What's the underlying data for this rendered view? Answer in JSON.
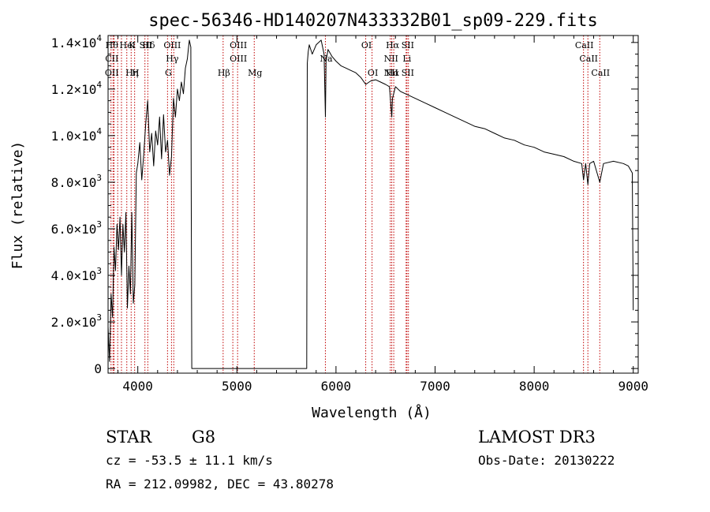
{
  "chart_data": {
    "type": "line",
    "title": "spec-56346-HD140207N433332B01_sp09-229.fits",
    "xlabel": "Wavelength (Å)",
    "ylabel": "Flux (relative)",
    "xlim": [
      3700,
      9050
    ],
    "ylim": [
      -200,
      14300
    ],
    "x_ticks": [
      4000,
      5000,
      6000,
      7000,
      8000,
      9000
    ],
    "x_tick_labels": [
      "4000",
      "5000",
      "6000",
      "7000",
      "8000",
      "9000"
    ],
    "y_ticks": [
      0,
      2000,
      4000,
      6000,
      8000,
      10000,
      12000,
      14000
    ],
    "y_tick_labels": [
      {
        "mant": "0",
        "exp": ""
      },
      {
        "mant": "2.0×10",
        "exp": "3"
      },
      {
        "mant": "4.0×10",
        "exp": "3"
      },
      {
        "mant": "6.0×10",
        "exp": "3"
      },
      {
        "mant": "8.0×10",
        "exp": "3"
      },
      {
        "mant": "1.0×10",
        "exp": "4"
      },
      {
        "mant": "1.2×10",
        "exp": "4"
      },
      {
        "mant": "1.4×10",
        "exp": "4"
      }
    ],
    "grid": false,
    "series": [
      {
        "color": "#000000",
        "x": [
          3700,
          3715,
          3730,
          3745,
          3760,
          3775,
          3790,
          3805,
          3820,
          3835,
          3850,
          3865,
          3880,
          3895,
          3910,
          3925,
          3940,
          3955,
          3970,
          3985,
          4000,
          4020,
          4040,
          4060,
          4080,
          4100,
          4120,
          4140,
          4160,
          4180,
          4200,
          4220,
          4240,
          4260,
          4280,
          4300,
          4320,
          4340,
          4360,
          4380,
          4400,
          4420,
          4440,
          4460,
          4480,
          4500,
          4510,
          4520,
          4535,
          4540,
          4545,
          4700,
          5000,
          5300,
          5600,
          5705,
          5710,
          5720,
          5730,
          5760,
          5800,
          5850,
          5880,
          5893,
          5900,
          5920,
          5960,
          6000,
          6050,
          6100,
          6150,
          6200,
          6250,
          6300,
          6350,
          6400,
          6450,
          6500,
          6540,
          6556,
          6563,
          6570,
          6600,
          6650,
          6700,
          6800,
          6900,
          7000,
          7100,
          7200,
          7300,
          7400,
          7500,
          7600,
          7700,
          7800,
          7900,
          8000,
          8100,
          8200,
          8300,
          8400,
          8480,
          8498,
          8520,
          8542,
          8560,
          8600,
          8662,
          8700,
          8800,
          8900,
          8950,
          8990,
          9000
        ],
        "y": [
          1800,
          300,
          3200,
          2200,
          5200,
          4200,
          6200,
          5100,
          6500,
          4000,
          6200,
          5000,
          6700,
          2600,
          4400,
          3200,
          6700,
          2800,
          3600,
          8400,
          8800,
          9700,
          8100,
          9200,
          10500,
          11500,
          9300,
          10100,
          8700,
          10200,
          9600,
          10800,
          9000,
          10900,
          9300,
          9800,
          8300,
          9100,
          11600,
          10800,
          12000,
          11500,
          12300,
          11800,
          12900,
          13300,
          13700,
          14100,
          13800,
          6500,
          0,
          0,
          0,
          0,
          0,
          0,
          13100,
          13600,
          13900,
          13500,
          13900,
          14100,
          13500,
          10800,
          13200,
          13700,
          13400,
          13200,
          13000,
          12900,
          12800,
          12700,
          12500,
          12200,
          12350,
          12400,
          12300,
          12200,
          12100,
          11200,
          10800,
          11600,
          12100,
          11900,
          11800,
          11600,
          11400,
          11200,
          11000,
          10800,
          10600,
          10400,
          10300,
          10100,
          9900,
          9800,
          9600,
          9500,
          9300,
          9200,
          9100,
          8900,
          8800,
          8100,
          8800,
          7900,
          8800,
          8900,
          8000,
          8800,
          8900,
          8800,
          8700,
          8400,
          2500
        ]
      }
    ],
    "line_marks": [
      {
        "x": 3730,
        "labels": [
          "Hθ",
          "CII",
          "OII"
        ]
      },
      {
        "x": 3750,
        "labels": []
      },
      {
        "x": 3760,
        "labels": []
      },
      {
        "x": 3797,
        "labels": []
      },
      {
        "x": 3835,
        "labels": []
      },
      {
        "x": 3889,
        "labels": [
          "HeI"
        ]
      },
      {
        "x": 3933,
        "labels": [
          "K",
          "",
          "Hη"
        ]
      },
      {
        "x": 3968,
        "labels": [
          "",
          "",
          "H"
        ]
      },
      {
        "x": 4072,
        "labels": [
          "SII"
        ]
      },
      {
        "x": 4101,
        "labels": [
          "Hδ"
        ]
      },
      {
        "x": 4300,
        "labels": [
          "",
          "",
          "G"
        ]
      },
      {
        "x": 4340,
        "labels": [
          "OIII",
          "Hγ"
        ]
      },
      {
        "x": 4363,
        "labels": []
      },
      {
        "x": 4861,
        "labels": [
          "",
          "",
          "Hβ"
        ]
      },
      {
        "x": 4959,
        "labels": []
      },
      {
        "x": 5007,
        "labels": [
          "OIII",
          "OIII"
        ]
      },
      {
        "x": 5175,
        "labels": [
          "",
          "",
          "Mg"
        ]
      },
      {
        "x": 5893,
        "labels": [
          "",
          "Na"
        ]
      },
      {
        "x": 6300,
        "labels": [
          "OI"
        ]
      },
      {
        "x": 6364,
        "labels": [
          "",
          "",
          "OI"
        ]
      },
      {
        "x": 6548,
        "labels": [
          "",
          "NII",
          "NII"
        ]
      },
      {
        "x": 6563,
        "labels": [
          "Hα",
          "",
          "Hα"
        ]
      },
      {
        "x": 6583,
        "labels": []
      },
      {
        "x": 6708,
        "labels": [
          "",
          "Li"
        ]
      },
      {
        "x": 6716,
        "labels": [
          "SII",
          "",
          "SII"
        ]
      },
      {
        "x": 6731,
        "labels": []
      },
      {
        "x": 8498,
        "labels": [
          "CaII"
        ]
      },
      {
        "x": 8542,
        "labels": [
          "",
          "CaII"
        ]
      },
      {
        "x": 8662,
        "labels": [
          "",
          "",
          "CaII"
        ]
      }
    ]
  },
  "info": {
    "class_label": "STAR",
    "subclass": "G8",
    "survey": "LAMOST DR3",
    "cz": "cz = -53.5 ± 11.1 km/s",
    "obs_date": "Obs-Date: 20130222",
    "radec": "RA = 212.09982, DEC =  43.80278"
  }
}
